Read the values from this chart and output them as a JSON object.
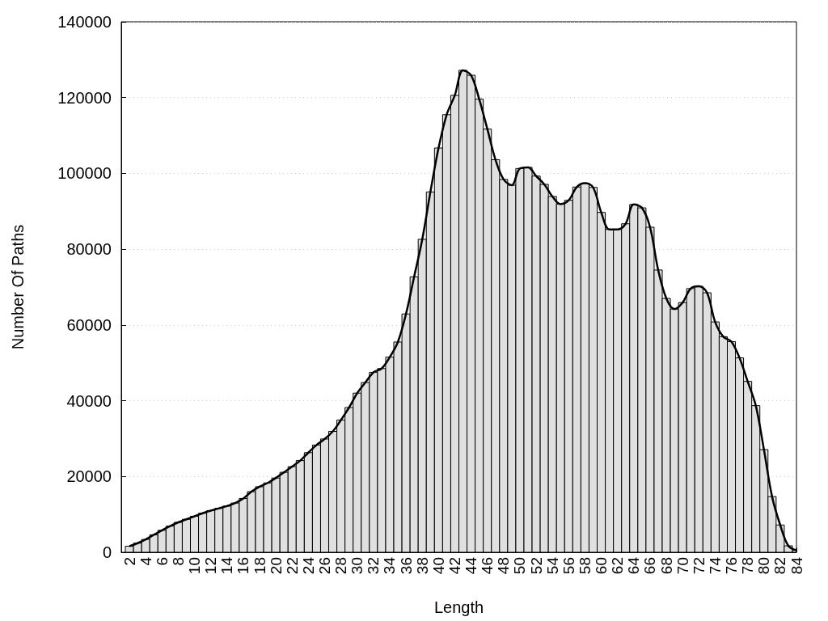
{
  "chart_data": {
    "type": "histogram",
    "xlabel": "Length",
    "ylabel": "Number Of Paths",
    "color": "#e0e0e0",
    "bins": [
      1.5,
      2.5,
      3.5,
      4.5,
      5.5,
      6.5,
      7.5,
      8.5,
      9.5,
      10.5,
      11.5,
      12.5,
      13.5,
      14.5,
      15.5,
      16.5,
      17.5,
      18.5,
      19.5,
      20.5,
      21.5,
      22.5,
      23.5,
      24.5,
      25.5,
      26.5,
      27.5,
      28.5,
      29.5,
      30.5,
      31.5,
      32.5,
      33.5,
      34.5,
      35.5,
      36.5,
      37.5,
      38.5,
      39.5,
      40.5,
      41.5,
      42.5,
      43.5,
      44.5,
      45.5,
      46.5,
      47.5,
      48.5,
      49.5,
      50.5,
      51.5,
      52.5,
      53.5,
      54.5,
      55.5,
      56.5,
      57.5,
      58.5,
      59.5,
      60.5,
      61.5,
      62.5,
      63.5,
      64.5,
      65.5,
      66.5,
      67.5,
      68.5,
      69.5,
      70.5,
      71.5,
      72.5,
      73.5,
      74.5,
      75.5,
      76.5,
      77.5,
      78.5,
      79.5,
      80.5,
      81.5,
      82.5,
      83.5,
      84
    ],
    "values": [
      1600,
      2400,
      3400,
      4600,
      5800,
      6900,
      7900,
      8700,
      9500,
      10300,
      11000,
      11600,
      12200,
      13000,
      14200,
      16000,
      17300,
      18300,
      19600,
      21100,
      22600,
      24200,
      26300,
      28300,
      29900,
      31900,
      34900,
      38200,
      42000,
      44800,
      47500,
      48500,
      51500,
      55500,
      62900,
      72700,
      82600,
      95100,
      106700,
      115500,
      120600,
      127200,
      125900,
      119600,
      111700,
      103600,
      98400,
      96900,
      101300,
      101600,
      99300,
      97100,
      93900,
      91900,
      92900,
      96400,
      97400,
      96300,
      89700,
      85200,
      85200,
      86700,
      91800,
      90900,
      85800,
      74500,
      67000,
      64200,
      65900,
      69600,
      70200,
      68500,
      60800,
      56900,
      55600,
      51300,
      45100,
      38700,
      27100,
      14700,
      7200,
      1700,
      500
    ],
    "series": [
      {
        "type": "line",
        "color": "#000000",
        "x": [
          2,
          3,
          4,
          5,
          6,
          7,
          8,
          9,
          10,
          11,
          12,
          13,
          14,
          15,
          16,
          17,
          18,
          19,
          20,
          21,
          22,
          23,
          24,
          25,
          26,
          27,
          28,
          29,
          30,
          31,
          32,
          33,
          34,
          35,
          36,
          37,
          38,
          39,
          40,
          41,
          42,
          43,
          44,
          45,
          46,
          47,
          48,
          49,
          50,
          51,
          52,
          53,
          54,
          55,
          56,
          57,
          58,
          59,
          60,
          61,
          62,
          63,
          64,
          65,
          66,
          67,
          68,
          69,
          70,
          71,
          72,
          73,
          74,
          75,
          76,
          77,
          78,
          79,
          80,
          81,
          82,
          83,
          84
        ],
        "values": [
          1600,
          2400,
          3400,
          4600,
          5800,
          6900,
          7900,
          8700,
          9500,
          10300,
          11000,
          11600,
          12200,
          13000,
          14200,
          16000,
          17300,
          18300,
          19600,
          21100,
          22600,
          24200,
          26300,
          28300,
          29900,
          31900,
          34900,
          38200,
          42000,
          44800,
          47500,
          48500,
          51500,
          55500,
          62900,
          72700,
          82600,
          95100,
          106700,
          115500,
          120600,
          127200,
          125900,
          119600,
          111700,
          103600,
          98400,
          96900,
          101300,
          101600,
          99300,
          97100,
          93900,
          91900,
          92900,
          96400,
          97400,
          96300,
          89700,
          85200,
          85200,
          86700,
          91800,
          90900,
          85800,
          74500,
          67000,
          64200,
          65900,
          69600,
          70200,
          68500,
          60800,
          56900,
          55600,
          51300,
          45100,
          38700,
          27100,
          14700,
          7200,
          1700,
          500
        ]
      }
    ],
    "xlim": [
      1,
      84
    ],
    "xticks": [
      2,
      4,
      6,
      8,
      10,
      12,
      14,
      16,
      18,
      20,
      22,
      24,
      26,
      28,
      30,
      32,
      34,
      36,
      38,
      40,
      42,
      44,
      46,
      48,
      50,
      52,
      54,
      56,
      58,
      60,
      62,
      64,
      66,
      68,
      70,
      72,
      74,
      76,
      78,
      80,
      82,
      84
    ],
    "ylim": [
      0,
      140000
    ],
    "yticks": [
      0,
      20000,
      40000,
      60000,
      80000,
      100000,
      120000,
      140000
    ],
    "grid": "y",
    "marker": "none",
    "line_style": "solid"
  }
}
